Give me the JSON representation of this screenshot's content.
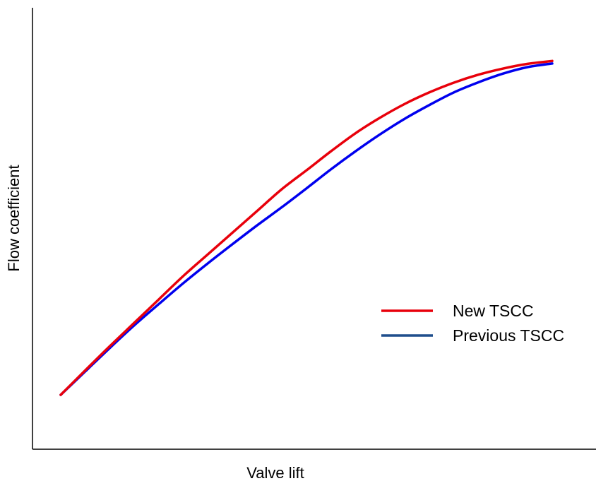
{
  "chart_data": {
    "type": "line",
    "title": "",
    "xlabel": "Valve lift",
    "ylabel": "Flow coefficient",
    "xlim": [
      0,
      1
    ],
    "ylim": [
      0,
      1
    ],
    "grid": false,
    "legend_position": "lower-right",
    "x": [
      0.0,
      0.2,
      0.4,
      0.6,
      0.8,
      1.0
    ],
    "series": [
      {
        "name": "New TSCC",
        "color": "#e8000b",
        "legend_color": "#e8000b",
        "x": [
          0.0,
          0.05,
          0.1,
          0.15,
          0.2,
          0.25,
          0.3,
          0.35,
          0.4,
          0.45,
          0.5,
          0.55,
          0.6,
          0.65,
          0.7,
          0.75,
          0.8,
          0.85,
          0.9,
          0.95,
          1.0
        ],
        "values": [
          0.0,
          0.068,
          0.135,
          0.2,
          0.265,
          0.33,
          0.39,
          0.45,
          0.51,
          0.57,
          0.622,
          0.675,
          0.725,
          0.768,
          0.806,
          0.838,
          0.865,
          0.887,
          0.904,
          0.917,
          0.925
        ]
      },
      {
        "name": "Previous TSCC",
        "color": "#0000ee",
        "legend_color": "#1f4e8c",
        "x": [
          0.0,
          0.05,
          0.1,
          0.15,
          0.2,
          0.25,
          0.3,
          0.35,
          0.4,
          0.45,
          0.5,
          0.55,
          0.6,
          0.65,
          0.7,
          0.75,
          0.8,
          0.85,
          0.9,
          0.95,
          1.0
        ],
        "values": [
          0.0,
          0.065,
          0.13,
          0.193,
          0.252,
          0.31,
          0.365,
          0.418,
          0.47,
          0.52,
          0.572,
          0.625,
          0.675,
          0.722,
          0.765,
          0.803,
          0.838,
          0.866,
          0.89,
          0.908,
          0.918
        ]
      }
    ]
  }
}
